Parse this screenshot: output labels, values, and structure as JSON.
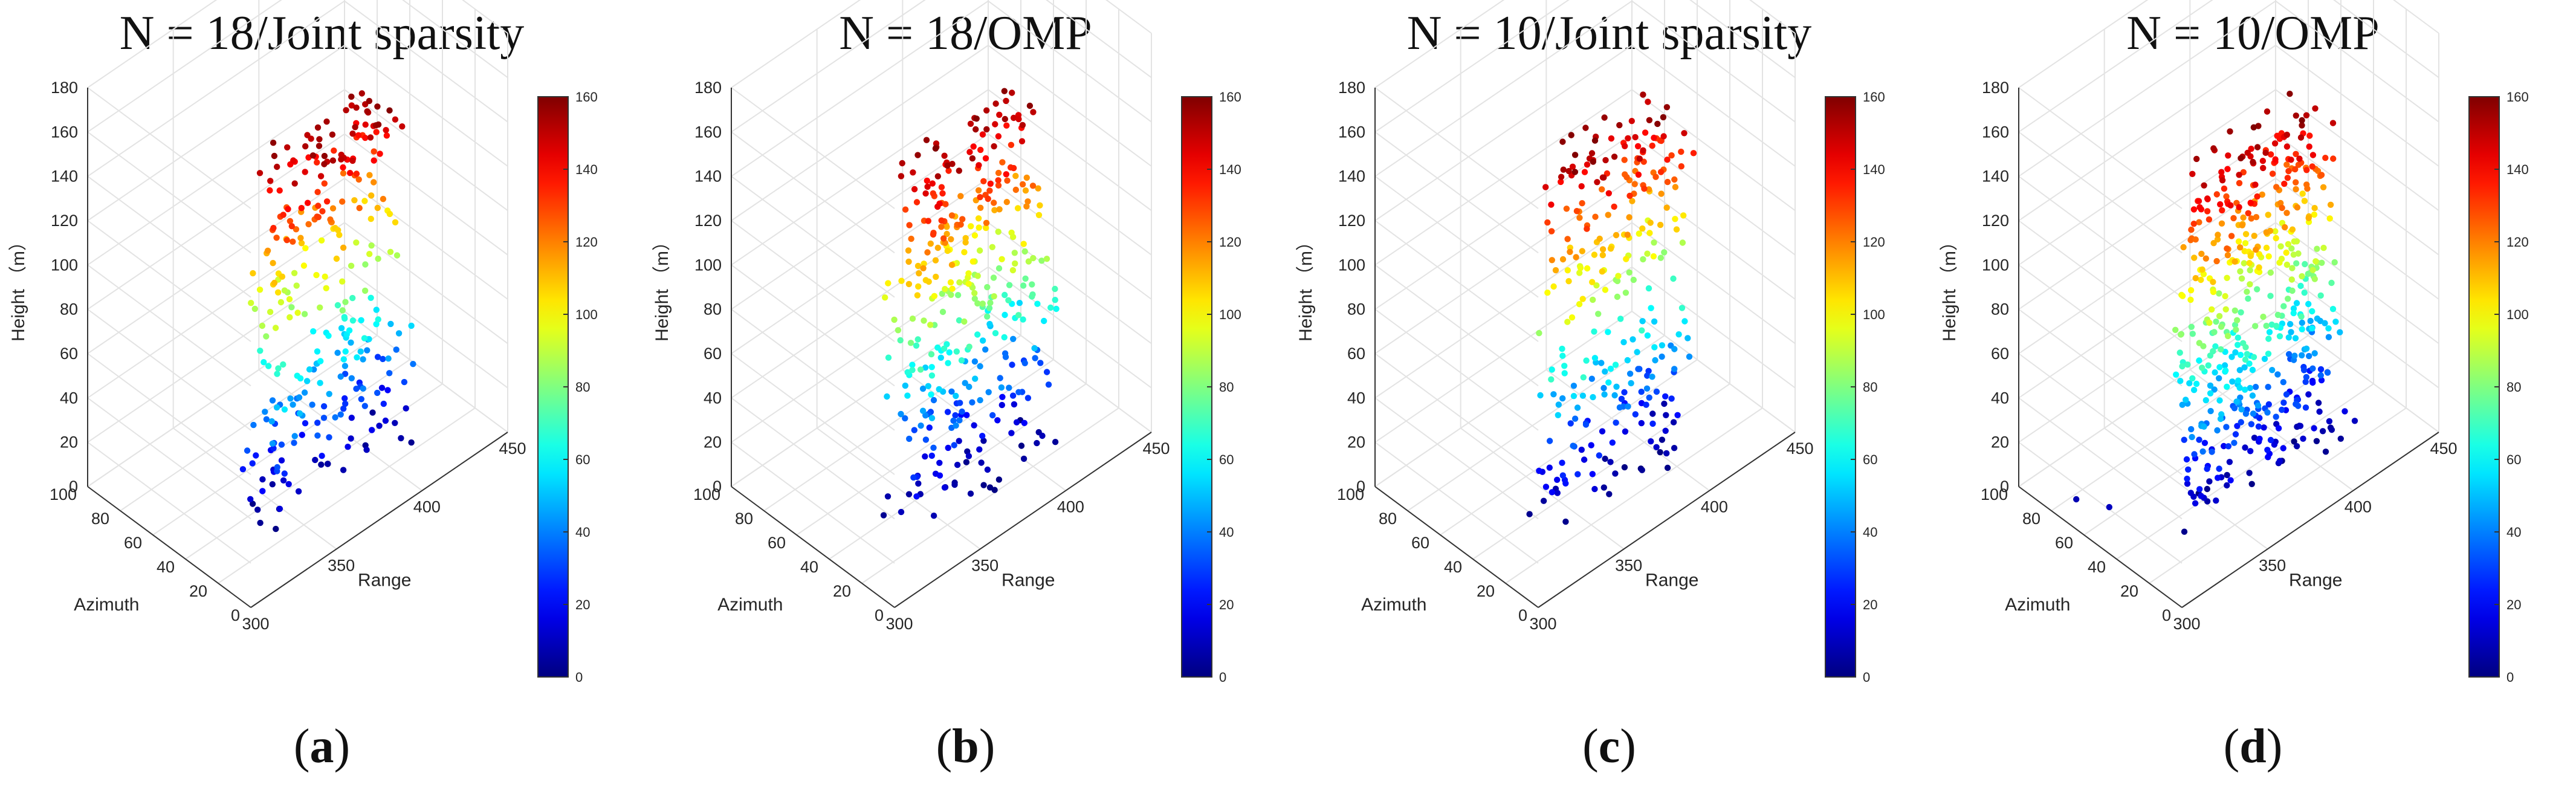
{
  "figure": {
    "panels": [
      {
        "title": "N = 18/Joint sparsity",
        "label_open": "(",
        "label_letter": "a",
        "label_close": ")"
      },
      {
        "title": "N = 18/OMP",
        "label_open": "(",
        "label_letter": "b",
        "label_close": ")"
      },
      {
        "title": "N = 10/Joint sparsity",
        "label_open": "(",
        "label_letter": "c",
        "label_close": ")"
      },
      {
        "title": "N = 10/OMP",
        "label_open": "(",
        "label_letter": "d",
        "label_close": ")"
      }
    ]
  },
  "chart_data": [
    {
      "type": "scatter",
      "title": "N = 18/Joint sparsity",
      "xlabel": "Range",
      "ylabel": "Azimuth",
      "zlabel": "Height （m）",
      "xlim": [
        300,
        450
      ],
      "ylim": [
        0,
        100
      ],
      "zlim": [
        0,
        180
      ],
      "xticks": [
        300,
        350,
        400,
        450
      ],
      "yticks": [
        0,
        20,
        40,
        60,
        80,
        100
      ],
      "zticks": [
        0,
        20,
        40,
        60,
        80,
        100,
        120,
        140,
        160,
        180
      ],
      "colorbar": {
        "colormap": "jet",
        "range": [
          0,
          160
        ],
        "ticks": [
          0,
          20,
          40,
          60,
          80,
          100,
          120,
          140,
          160
        ]
      },
      "grid": true,
      "point_cloud": {
        "count": 320,
        "range": [
          330,
          420
        ],
        "azimuth": [
          20,
          45
        ],
        "height": [
          0,
          160
        ],
        "gap": [
          70,
          82
        ],
        "outliers": []
      }
    },
    {
      "type": "scatter",
      "title": "N = 18/OMP",
      "xlabel": "Range",
      "ylabel": "Azimuth",
      "zlabel": "Height （m）",
      "xlim": [
        300,
        450
      ],
      "ylim": [
        0,
        100
      ],
      "zlim": [
        0,
        180
      ],
      "xticks": [
        300,
        350,
        400,
        450
      ],
      "yticks": [
        0,
        20,
        40,
        60,
        80,
        100
      ],
      "zticks": [
        0,
        20,
        40,
        60,
        80,
        100,
        120,
        140,
        160,
        180
      ],
      "colorbar": {
        "colormap": "jet",
        "range": [
          0,
          160
        ],
        "ticks": [
          0,
          20,
          40,
          60,
          80,
          100,
          120,
          140,
          160
        ]
      },
      "grid": true,
      "point_cloud": {
        "count": 380,
        "range": [
          330,
          420
        ],
        "azimuth": [
          20,
          45
        ],
        "height": [
          0,
          160
        ],
        "gap": null,
        "outliers": []
      }
    },
    {
      "type": "scatter",
      "title": "N = 10/Joint sparsity",
      "xlabel": "Range",
      "ylabel": "Azimuth",
      "zlabel": "Height （m）",
      "xlim": [
        300,
        450
      ],
      "ylim": [
        0,
        100
      ],
      "zlim": [
        0,
        180
      ],
      "xticks": [
        300,
        350,
        400,
        450
      ],
      "yticks": [
        0,
        20,
        40,
        60,
        80,
        100
      ],
      "zticks": [
        0,
        20,
        40,
        60,
        80,
        100,
        120,
        140,
        160,
        180
      ],
      "colorbar": {
        "colormap": "jet",
        "range": [
          0,
          160
        ],
        "ticks": [
          0,
          20,
          40,
          60,
          80,
          100,
          120,
          140,
          160
        ]
      },
      "grid": true,
      "point_cloud": {
        "count": 300,
        "range": [
          330,
          420
        ],
        "azimuth": [
          20,
          45
        ],
        "height": [
          0,
          160
        ],
        "gap": [
          70,
          82
        ],
        "outliers": []
      }
    },
    {
      "type": "scatter",
      "title": "N = 10/OMP",
      "xlabel": "Range",
      "ylabel": "Azimuth",
      "zlabel": "Height （m）",
      "xlim": [
        300,
        450
      ],
      "ylim": [
        0,
        100
      ],
      "zlim": [
        0,
        180
      ],
      "xticks": [
        300,
        350,
        400,
        450
      ],
      "yticks": [
        0,
        20,
        40,
        60,
        80,
        100
      ],
      "zticks": [
        0,
        20,
        40,
        60,
        80,
        100,
        120,
        140,
        160,
        180
      ],
      "colorbar": {
        "colormap": "jet",
        "range": [
          0,
          160
        ],
        "ticks": [
          0,
          20,
          40,
          60,
          80,
          100,
          120,
          140,
          160
        ]
      },
      "grid": true,
      "point_cloud": {
        "count": 520,
        "range": [
          330,
          420
        ],
        "azimuth": [
          20,
          45
        ],
        "height": [
          0,
          160
        ],
        "gap": null,
        "outliers": [
          {
            "range": 310,
            "azimuth": 55,
            "height": 10
          },
          {
            "range": 305,
            "azimuth": 70,
            "height": 8
          },
          {
            "range": 330,
            "azimuth": 30,
            "height": 2
          },
          {
            "range": 420,
            "azimuth": 20,
            "height": 10
          }
        ]
      }
    }
  ]
}
